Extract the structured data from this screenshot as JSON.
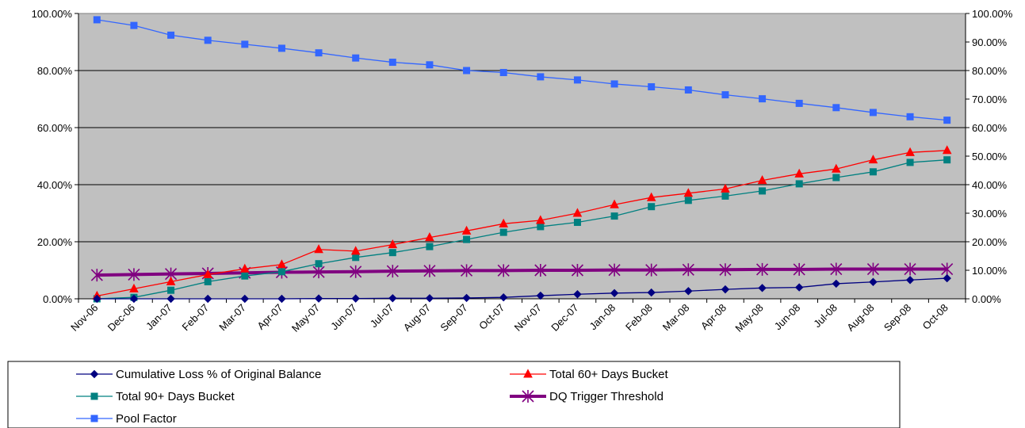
{
  "chart_data": {
    "type": "line",
    "categories": [
      "Nov-06",
      "Dec-06",
      "Jan-07",
      "Feb-07",
      "Mar-07",
      "Apr-07",
      "May-07",
      "Jun-07",
      "Jul-07",
      "Aug-07",
      "Sep-07",
      "Oct-07",
      "Nov-07",
      "Dec-07",
      "Jan-08",
      "Feb-08",
      "Mar-08",
      "Apr-08",
      "May-08",
      "Jun-08",
      "Jul-08",
      "Aug-08",
      "Sep-08",
      "Oct-08"
    ],
    "y_left": {
      "ticks": [
        "0.00%",
        "20.00%",
        "40.00%",
        "60.00%",
        "80.00%",
        "100.00%"
      ],
      "range": [
        0,
        100
      ]
    },
    "y_right": {
      "ticks": [
        "0.00%",
        "10.00%",
        "20.00%",
        "30.00%",
        "40.00%",
        "50.00%",
        "60.00%",
        "70.00%",
        "80.00%",
        "90.00%",
        "100.00%"
      ],
      "range": [
        0,
        100
      ]
    },
    "grid": "horizontal",
    "plot_background": "#C0C0C0",
    "legend_position": "bottom",
    "series": [
      {
        "name": "Cumulative Loss % of Original Balance",
        "axis": "left",
        "color": "#000080",
        "marker": "diamond",
        "values": [
          0.0,
          0.0,
          0.0,
          0.0,
          0.0,
          0.0,
          0.1,
          0.1,
          0.2,
          0.2,
          0.3,
          0.5,
          1.1,
          1.6,
          2.0,
          2.2,
          2.7,
          3.3,
          3.8,
          4.0,
          5.3,
          5.9,
          6.6,
          7.2
        ]
      },
      {
        "name": "Total 60+ Days Bucket",
        "axis": "left",
        "color": "#FF0000",
        "marker": "triangle",
        "values": [
          1.0,
          3.5,
          6.0,
          8.5,
          10.5,
          12.0,
          17.3,
          16.7,
          19.0,
          21.5,
          23.8,
          26.3,
          27.5,
          30.0,
          33.0,
          35.5,
          37.0,
          38.5,
          41.5,
          43.8,
          45.5,
          48.7,
          51.3,
          52.0
        ]
      },
      {
        "name": "Total 90+ Days Bucket",
        "axis": "left",
        "color": "#008080",
        "marker": "square",
        "values": [
          0.0,
          0.5,
          3.0,
          6.0,
          8.0,
          9.5,
          12.3,
          14.5,
          16.2,
          18.3,
          20.8,
          23.3,
          25.3,
          26.8,
          29.0,
          32.3,
          34.5,
          36.0,
          37.8,
          40.3,
          42.5,
          44.5,
          47.8,
          48.7
        ]
      },
      {
        "name": "DQ Trigger Threshold",
        "axis": "right",
        "color": "#800080",
        "marker": "asterisk",
        "values": [
          8.3,
          8.5,
          8.7,
          8.9,
          9.1,
          9.3,
          9.4,
          9.5,
          9.7,
          9.8,
          9.9,
          9.9,
          10.0,
          10.0,
          10.1,
          10.1,
          10.2,
          10.2,
          10.3,
          10.3,
          10.4,
          10.4,
          10.4,
          10.4
        ]
      },
      {
        "name": "Pool Factor",
        "axis": "left",
        "color": "#3366FF",
        "marker": "square",
        "values": [
          97.8,
          95.8,
          92.4,
          90.6,
          89.2,
          87.8,
          86.2,
          84.4,
          82.9,
          82.0,
          80.0,
          79.3,
          77.8,
          76.7,
          75.3,
          74.3,
          73.2,
          71.5,
          70.1,
          68.5,
          67.0,
          65.3,
          63.8,
          62.6
        ]
      }
    ]
  }
}
